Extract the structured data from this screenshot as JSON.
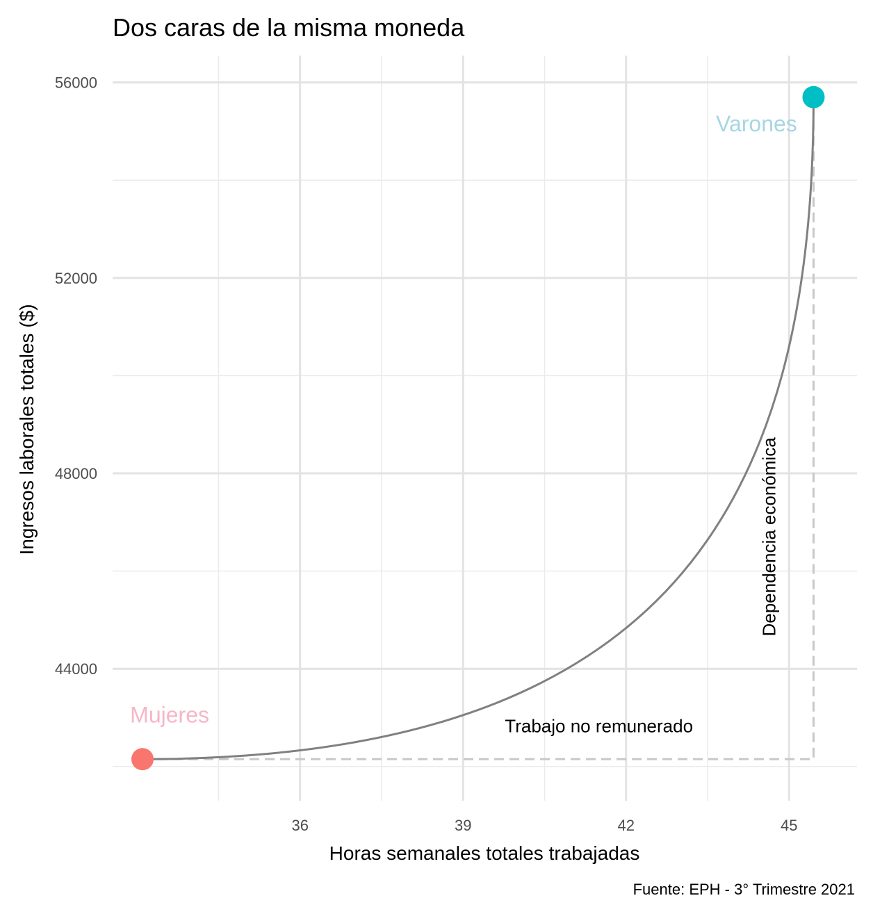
{
  "chart_data": {
    "type": "scatter",
    "title": "Dos caras de la misma moneda",
    "xlabel": "Horas semanales totales trabajadas",
    "ylabel": "Ingresos laborales totales ($)",
    "caption": "Fuente: EPH - 3° Trimestre 2021",
    "xlim": [
      32.55,
      46.25
    ],
    "ylim": [
      41300,
      56550
    ],
    "x_ticks": [
      36,
      39,
      42,
      45
    ],
    "x_tick_labels": [
      "36",
      "39",
      "42",
      "45"
    ],
    "y_ticks": [
      44000,
      48000,
      52000,
      56000
    ],
    "y_tick_labels": [
      "44000",
      "48000",
      "52000",
      "56000"
    ],
    "grid": true,
    "points": [
      {
        "name": "Mujeres",
        "x": 33.1,
        "y": 42150,
        "color": "#f8766d"
      },
      {
        "name": "Varones",
        "x": 45.45,
        "y": 55700,
        "color": "#00bfc4"
      }
    ],
    "point_labels": [
      {
        "text": "Mujeres",
        "x": 33.6,
        "y": 42900,
        "color": "#f7b6c8"
      },
      {
        "text": "Varones",
        "x": 44.4,
        "y": 55000,
        "color": "#a7d6e2"
      }
    ],
    "annotations": [
      {
        "text": "Trabajo no remunerado",
        "x": 41.5,
        "y": 42700
      },
      {
        "text": "Dependencia económica",
        "x": 44.75,
        "y": 46700,
        "rotation": -90
      }
    ],
    "curve_color": "#808080",
    "dashed_color": "#c8c8c8"
  }
}
